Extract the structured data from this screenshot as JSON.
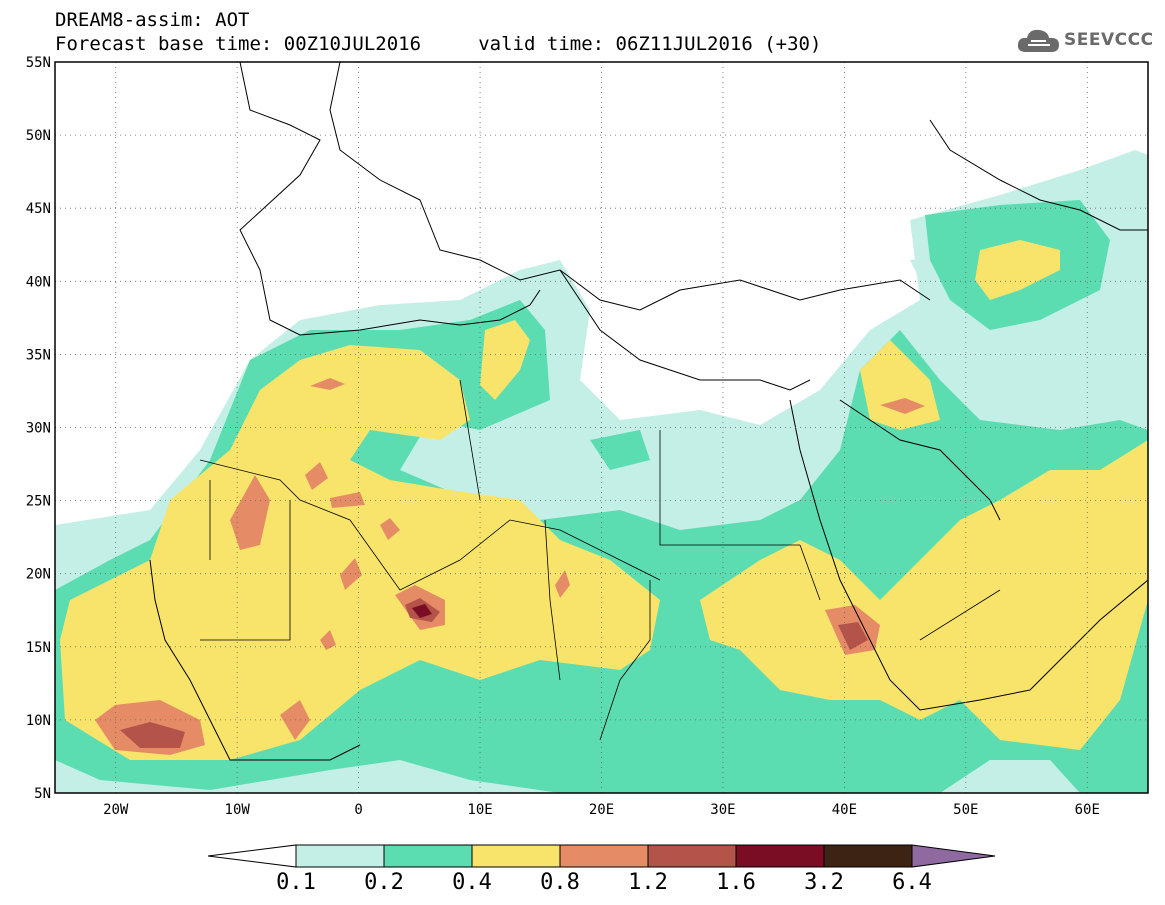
{
  "title": {
    "line1": "DREAM8-assim: AOT",
    "line2": "Forecast base time: 00Z10JUL2016     valid time: 06Z11JUL2016 (+30)"
  },
  "logo": {
    "text": "SEEVCCC",
    "icon": "cloud-icon",
    "color": "#6a6a6a"
  },
  "map": {
    "variable": "AOT",
    "lon_range": [
      -25,
      65
    ],
    "lat_range": [
      5,
      55
    ],
    "lon_ticks": [
      "20W",
      "10W",
      "0",
      "10E",
      "20E",
      "30E",
      "40E",
      "50E",
      "60E"
    ],
    "lat_ticks": [
      "55N",
      "50N",
      "45N",
      "40N",
      "35N",
      "30N",
      "25N",
      "20N",
      "15N",
      "10N",
      "5N"
    ],
    "gridlines": "dotted"
  },
  "colorbar": {
    "labels": [
      "0.1",
      "0.2",
      "0.4",
      "0.8",
      "1.2",
      "1.6",
      "3.2",
      "6.4"
    ],
    "colors": [
      "#ffffff",
      "#c4efe6",
      "#5bdcb1",
      "#f8e46b",
      "#e58c66",
      "#b3534a",
      "#7a0d24",
      "#3d2314",
      "#8f6aa0"
    ]
  }
}
